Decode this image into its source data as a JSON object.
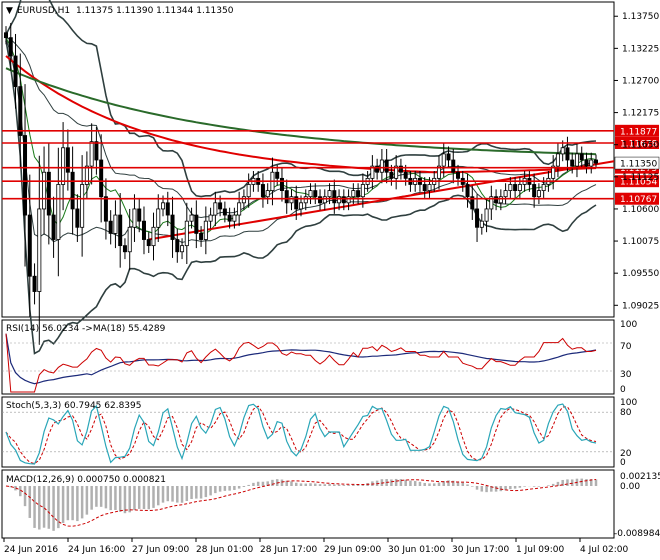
{
  "header": {
    "symbol": "EURUSD,H1",
    "ohlc": "1.11375 1.11390 1.11344 1.11350"
  },
  "colors": {
    "frame": "#000000",
    "candle": "#000000",
    "bollinger": "#2f3f3f",
    "ma_red": "#e00000",
    "ma_green": "#1a7a1a",
    "ma_darkgreen": "#2a6a2a",
    "level": "#e00000",
    "label_bg": "#e00000",
    "label_text": "#ffffff",
    "rsi": "#cc0000",
    "rsi_ma": "#1c2a7a",
    "stoch_main": "#2aa6b8",
    "stoch_signal": "#cc0000",
    "macd_hist": "#b0b0b0",
    "macd_signal": "#cc0000",
    "price_box": "#ffffff"
  },
  "price_axis": {
    "ticks": [
      "1.13750",
      "1.13225",
      "1.12700",
      "1.12175",
      "1.11650",
      "1.11125",
      "1.10600",
      "1.10075",
      "1.09550",
      "1.09025"
    ],
    "current": "1.11350"
  },
  "levels": [
    {
      "value": 1.11877,
      "label": "1.11877"
    },
    {
      "value": 1.11678,
      "label": "1.11678"
    },
    {
      "value": 1.11275,
      "label": "1.11275"
    },
    {
      "value": 1.11054,
      "label": "1.11054"
    },
    {
      "value": 1.10767,
      "label": "1.10767"
    }
  ],
  "time_axis": [
    "24 Jun 2016",
    "24 Jun 16:00",
    "27 Jun 09:00",
    "28 Jun 01:00",
    "28 Jun 17:00",
    "29 Jun 09:00",
    "30 Jun 01:00",
    "30 Jun 17:00",
    "1 Jul 09:00",
    "4 Jul 02:00"
  ],
  "rsi_panel": {
    "label": "RSI(14) 56.0234  ->MA(18) 55.4289",
    "levels": [
      "70",
      "30",
      "0"
    ],
    "top_label": "100"
  },
  "stoch_panel": {
    "label": "Stoch(5,3,3) 60.7945 62.8395",
    "levels": [
      "100",
      "80",
      "20",
      "0"
    ]
  },
  "macd_panel": {
    "label": "MACD(12,26,9) 0.000750 0.000821",
    "levels": [
      "0.002135",
      "0.00",
      "-0.008984"
    ]
  },
  "chart_data": {
    "type": "candlestick",
    "title": "EURUSD,H1",
    "ylim": [
      1.0885,
      1.1395
    ],
    "closes": [
      1.134,
      1.131,
      1.126,
      1.118,
      1.105,
      1.095,
      1.0925,
      1.106,
      1.112,
      1.105,
      1.101,
      1.11,
      1.116,
      1.112,
      1.106,
      1.103,
      1.11,
      1.113,
      1.117,
      1.114,
      1.108,
      1.104,
      1.102,
      1.105,
      1.1,
      1.099,
      1.103,
      1.106,
      1.104,
      1.101,
      1.1,
      1.103,
      1.106,
      1.107,
      1.105,
      1.101,
      1.099,
      1.1,
      1.104,
      1.105,
      1.102,
      1.101,
      1.104,
      1.105,
      1.107,
      1.106,
      1.105,
      1.104,
      1.105,
      1.107,
      1.108,
      1.11,
      1.111,
      1.11,
      1.108,
      1.109,
      1.112,
      1.111,
      1.109,
      1.107,
      1.108,
      1.106,
      1.107,
      1.108,
      1.109,
      1.108,
      1.107,
      1.108,
      1.109,
      1.107,
      1.108,
      1.107,
      1.108,
      1.109,
      1.108,
      1.11,
      1.111,
      1.113,
      1.112,
      1.114,
      1.112,
      1.111,
      1.113,
      1.112,
      1.111,
      1.11,
      1.111,
      1.11,
      1.109,
      1.11,
      1.111,
      1.113,
      1.115,
      1.114,
      1.112,
      1.111,
      1.11,
      1.108,
      1.106,
      1.103,
      1.104,
      1.106,
      1.108,
      1.107,
      1.108,
      1.109,
      1.11,
      1.109,
      1.11,
      1.111,
      1.11,
      1.108,
      1.109,
      1.11,
      1.111,
      1.113,
      1.115,
      1.116,
      1.114,
      1.113,
      1.115,
      1.114,
      1.113,
      1.114,
      1.1135
    ]
  }
}
